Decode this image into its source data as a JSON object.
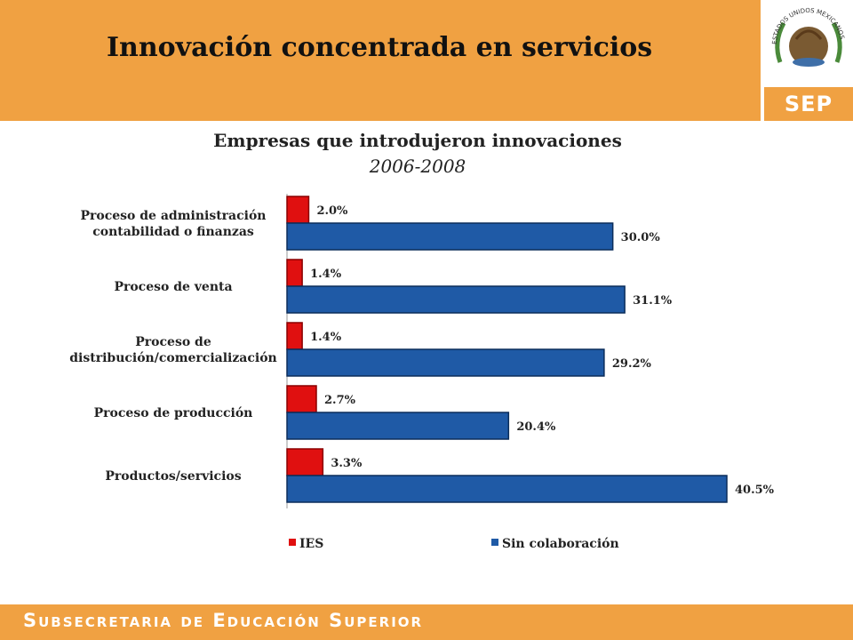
{
  "slide": {
    "title": "Innovación concentrada en servicios",
    "logo_text": "SEP",
    "seal_text": "ESTADOS UNIDOS MEXICANOS",
    "footer_text": "Subsecretaria de Educación Superior"
  },
  "colors": {
    "header": "#f0a142",
    "ies": "#e01010",
    "sin": "#1f5aa6"
  },
  "chart_data": {
    "type": "bar",
    "orientation": "horizontal",
    "title": "Empresas que introdujeron innovaciones",
    "subtitle": "2006-2008",
    "categories": [
      [
        "Proceso de administración",
        "contabilidad o finanzas"
      ],
      [
        "Proceso de venta"
      ],
      [
        "Proceso de",
        "distribución/comercialización"
      ],
      [
        "Proceso de producción"
      ],
      [
        "Productos/servicios"
      ]
    ],
    "series": [
      {
        "name": "IES",
        "values": [
          2.0,
          1.4,
          1.4,
          2.7,
          3.3
        ],
        "labels": [
          "2.0%",
          "1.4%",
          "1.4%",
          "2.7%",
          "3.3%"
        ],
        "color": "#e01010"
      },
      {
        "name": "Sin colaboración",
        "values": [
          30.0,
          31.1,
          29.2,
          20.4,
          40.5
        ],
        "labels": [
          "30.0%",
          "31.1%",
          "29.2%",
          "20.4%",
          "40.5%"
        ],
        "color": "#1f5aa6"
      }
    ],
    "xlim": [
      0,
      45
    ],
    "legend": "bottom",
    "grid": false
  }
}
